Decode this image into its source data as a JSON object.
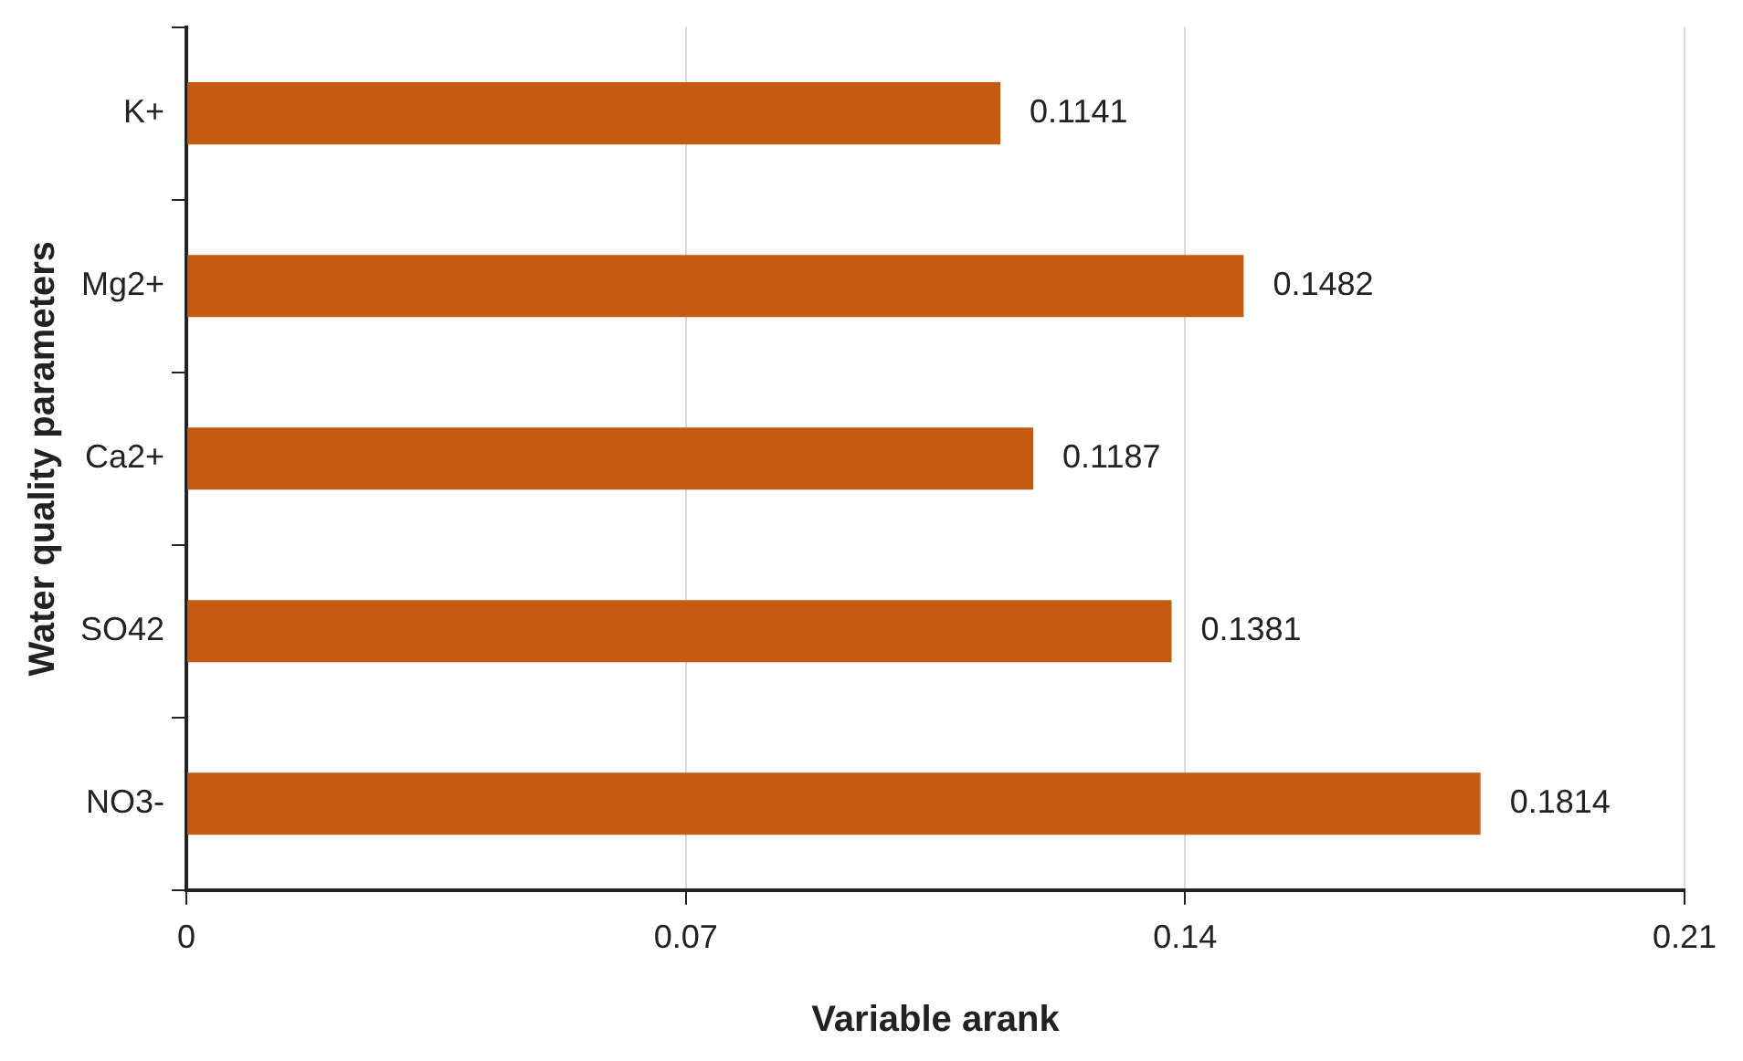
{
  "chart_data": {
    "type": "bar",
    "orientation": "horizontal",
    "xlabel": "Variable arank",
    "ylabel": "Water quality parameters",
    "categories": [
      "K+",
      "Mg2+",
      "Ca2+",
      "SO42",
      "NO3-"
    ],
    "values": [
      0.1141,
      0.1482,
      0.1187,
      0.1381,
      0.1814
    ],
    "color": "#c55a11",
    "xlim": [
      0,
      0.21
    ],
    "xticks": [
      0,
      0.07,
      0.14,
      0.21
    ],
    "grid": "x",
    "data_labels": true,
    "legend": false
  }
}
